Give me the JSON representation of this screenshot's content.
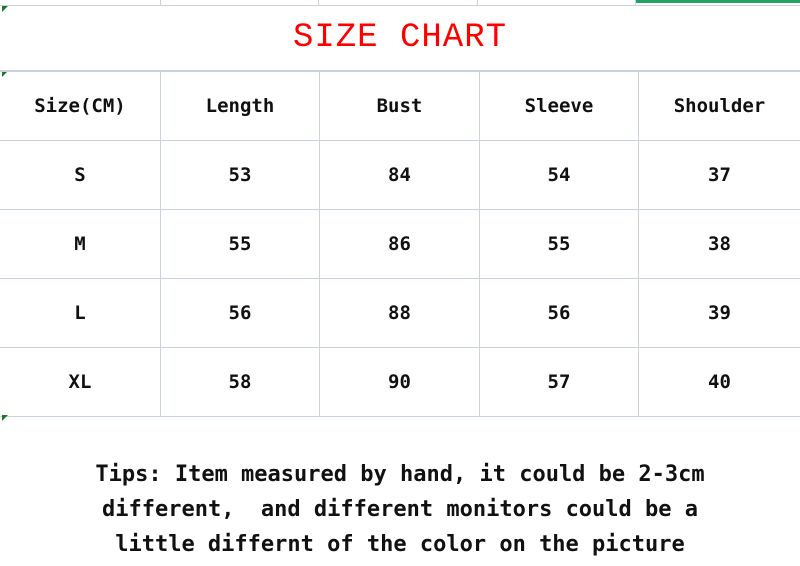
{
  "title": "SIZE CHART",
  "title_color": "#ff0000",
  "headers": [
    "Size(CM)",
    "Length",
    "Bust",
    "Sleeve",
    "Shoulder"
  ],
  "rows": [
    [
      "S",
      "53",
      "84",
      "54",
      "37"
    ],
    [
      "M",
      "55",
      "86",
      "55",
      "38"
    ],
    [
      "L",
      "56",
      "88",
      "56",
      "39"
    ],
    [
      "XL",
      "58",
      "90",
      "57",
      "40"
    ]
  ],
  "tips": {
    "line1": "Tips: Item measured by hand, it could be 2-3cm",
    "line2": "different,  and different monitors could be a",
    "line3": "little differnt of the color on the picture"
  }
}
